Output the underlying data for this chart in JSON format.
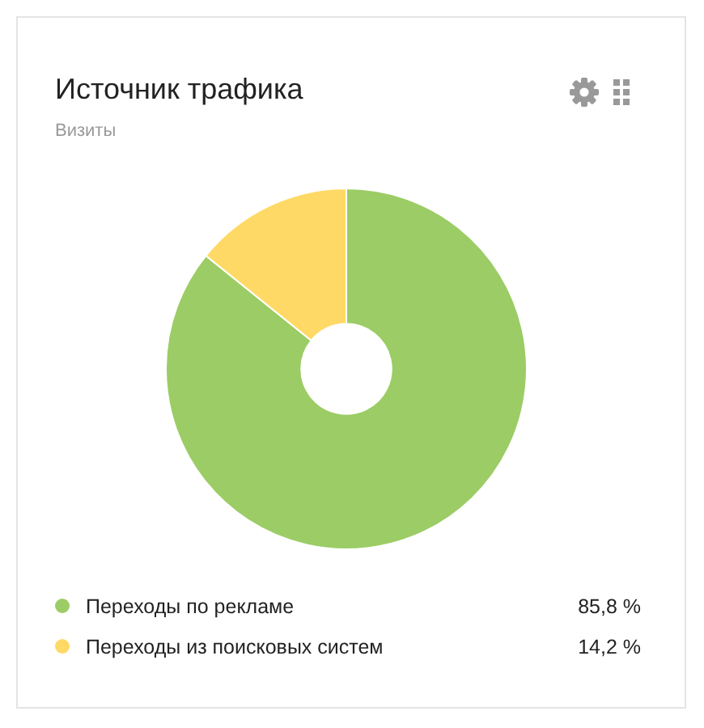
{
  "chart_data": {
    "type": "donut",
    "title": "Источник трафика",
    "subtitle": "Визиты",
    "categories": [
      "Переходы по рекламе",
      "Переходы из поисковых систем"
    ],
    "values": [
      85.8,
      14.2
    ],
    "colors": [
      "#9ccc65",
      "#ffd966"
    ],
    "value_labels": [
      "85,8 %",
      "14,2 %"
    ],
    "legend": "bottom"
  }
}
